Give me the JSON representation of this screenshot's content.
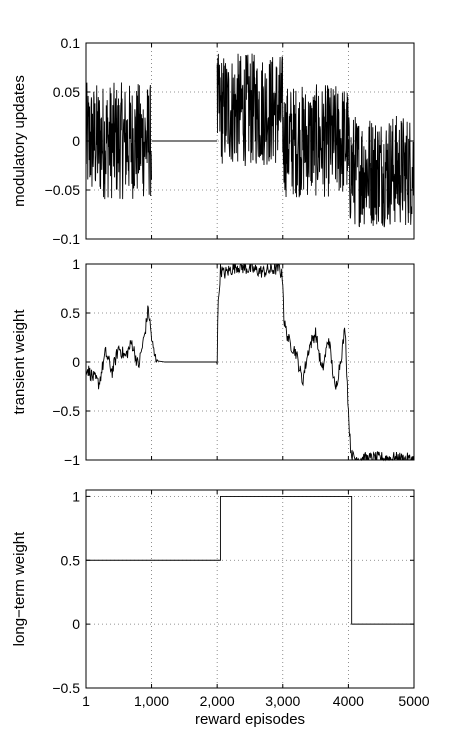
{
  "chart_data": [
    {
      "type": "line",
      "ylabel": "modulatory updates",
      "xlabel": "",
      "xlim": [
        1,
        5000
      ],
      "ylim": [
        -0.1,
        0.1
      ],
      "xticks": [
        1,
        1000,
        2000,
        3000,
        4000,
        5000
      ],
      "xtick_labels": [],
      "yticks": [
        -0.1,
        -0.05,
        0,
        0.05,
        0.1
      ],
      "ytick_labels": [
        "−0.1",
        "−0.05",
        "0",
        "0.05",
        "0.1"
      ],
      "grid": true,
      "series": [
        {
          "style": "noise-band",
          "segments": [
            {
              "x": [
                1,
                1000
              ],
              "center": 0,
              "amplitude": 0.06
            },
            {
              "x": [
                1000,
                2000
              ],
              "center": 0,
              "amplitude": 0
            },
            {
              "x": [
                2000,
                3000
              ],
              "center": 0.032,
              "amplitude": 0.058
            },
            {
              "x": [
                3000,
                4000
              ],
              "center": 0.0,
              "amplitude": 0.058
            },
            {
              "x": [
                4000,
                5000
              ],
              "center": -0.03,
              "amplitude": 0.058
            }
          ]
        }
      ]
    },
    {
      "type": "line",
      "ylabel": "transient weight",
      "xlabel": "",
      "xlim": [
        1,
        5000
      ],
      "ylim": [
        -1,
        1
      ],
      "xticks": [
        1,
        1000,
        2000,
        3000,
        4000,
        5000
      ],
      "xtick_labels": [],
      "yticks": [
        -1,
        -0.5,
        0,
        0.5,
        1
      ],
      "ytick_labels": [
        "−1",
        "−0.5",
        "0",
        "0.5",
        "1"
      ],
      "grid": true,
      "series": [
        {
          "style": "noisy-path",
          "x": [
            1,
            100,
            200,
            300,
            400,
            500,
            600,
            700,
            800,
            900,
            950,
            1000,
            1020,
            1050,
            1100,
            1200,
            2000,
            2010,
            2050,
            2100,
            2300,
            2500,
            2700,
            2950,
            3000,
            3020,
            3100,
            3200,
            3300,
            3400,
            3500,
            3600,
            3700,
            3800,
            3900,
            3950,
            4000,
            4030,
            4060,
            4100,
            4300,
            4600,
            5000
          ],
          "y": [
            -0.05,
            -0.15,
            -0.22,
            0.1,
            -0.1,
            0.15,
            0.05,
            0.2,
            -0.05,
            0.3,
            0.55,
            0.25,
            0.15,
            0.05,
            0.01,
            0.0,
            0.0,
            0.5,
            0.95,
            0.9,
            0.98,
            0.95,
            0.92,
            0.96,
            0.85,
            0.4,
            0.2,
            0.1,
            -0.2,
            0.15,
            0.3,
            -0.1,
            0.25,
            -0.3,
            0.1,
            0.35,
            -0.5,
            -0.85,
            -0.97,
            -0.98,
            -0.99,
            -0.98,
            -1.0
          ],
          "jitter": 0.07
        }
      ]
    },
    {
      "type": "line",
      "ylabel": "long−term weight",
      "xlabel": "reward episodes",
      "xlim": [
        1,
        5000
      ],
      "ylim": [
        -0.5,
        1.05
      ],
      "xticks": [
        1,
        1000,
        2000,
        3000,
        4000,
        5000
      ],
      "xtick_labels": [
        "1",
        "1,000",
        "2,000",
        "3,000",
        "4000",
        "5000"
      ],
      "yticks": [
        -0.5,
        0,
        0.5,
        1
      ],
      "ytick_labels": [
        "−0.5",
        "0",
        "0.5",
        "1"
      ],
      "grid": true,
      "series": [
        {
          "style": "step",
          "x": [
            1,
            2050,
            2050,
            4050,
            4050,
            5000
          ],
          "y": [
            0.5,
            0.5,
            1.0,
            1.0,
            0.0,
            0.0
          ]
        }
      ]
    }
  ]
}
